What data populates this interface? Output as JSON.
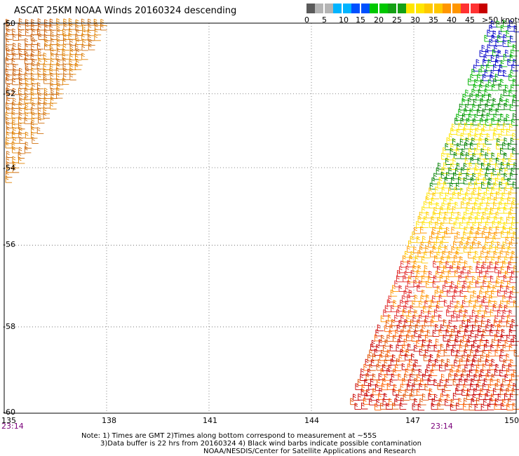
{
  "title": "ASCAT 25KM NOAA Winds 20160324 descending",
  "colorbar": {
    "colors": [
      "#5a5a5a",
      "#b4b4b4",
      "#00b4ff",
      "#0050ff",
      "#00c800",
      "#14a014",
      "#ffe600",
      "#ffc800",
      "#ff9600",
      "#ff3232",
      "#c80000",
      "#964600",
      "#ff50c8",
      "#aa00ff",
      "#640096"
    ],
    "ticks": [
      "0",
      "5",
      "10",
      "15",
      "20",
      "25",
      "30",
      "35",
      "40",
      "45"
    ],
    "unit_label": ">50 knots"
  },
  "map": {
    "lat_labels": [
      "-50",
      "-52",
      "-54",
      "-56",
      "-58",
      "-60"
    ],
    "lon_labels": [
      "135",
      "138",
      "141",
      "144",
      "147",
      "150"
    ],
    "times": [
      "23:14",
      "23:14"
    ]
  },
  "notes": {
    "line1": "Note: 1) Times are GMT 2)Times along bottom correspond to measurement at ~55S",
    "line2": "3)Data buffer is 22 hrs from 20160324 4) Black wind barbs indicate possible contamination",
    "line3": "NOAA/NESDIS/Center for Satellite Applications and Research"
  }
}
